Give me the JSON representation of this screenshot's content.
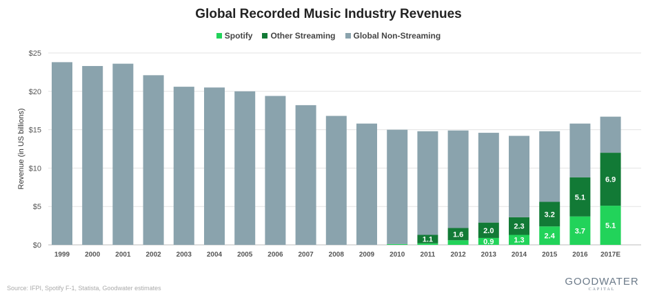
{
  "chart_data": {
    "type": "bar",
    "stacked": true,
    "title": "Global Recorded Music Industry Revenues",
    "ylabel": "Revenue (in US billions)",
    "xlabel": "",
    "ylim": [
      0,
      25
    ],
    "yticks": [
      0,
      5,
      10,
      15,
      20,
      25
    ],
    "ytick_labels": [
      "$0",
      "$5",
      "$10",
      "$15",
      "$20",
      "$25"
    ],
    "grid": true,
    "legend_position": "top",
    "categories": [
      "1999",
      "2000",
      "2001",
      "2002",
      "2003",
      "2004",
      "2005",
      "2006",
      "2007",
      "2008",
      "2009",
      "2010",
      "2011",
      "2012",
      "2013",
      "2014",
      "2015",
      "2016",
      "2017E"
    ],
    "series": [
      {
        "name": "Spotify",
        "color": "#22d35a",
        "values": [
          0,
          0,
          0,
          0,
          0,
          0,
          0,
          0,
          0,
          0,
          0,
          0.1,
          0.2,
          0.6,
          0.9,
          1.3,
          2.4,
          3.7,
          5.1
        ],
        "labels": [
          null,
          null,
          null,
          null,
          null,
          null,
          null,
          null,
          null,
          null,
          null,
          null,
          null,
          null,
          "0.9",
          "1.3",
          "2.4",
          "3.7",
          "5.1"
        ]
      },
      {
        "name": "Other Streaming",
        "color": "#127a36",
        "values": [
          0,
          0,
          0,
          0,
          0,
          0,
          0,
          0,
          0,
          0,
          0,
          0,
          1.1,
          1.6,
          2.0,
          2.3,
          3.2,
          5.1,
          6.9
        ],
        "labels": [
          null,
          null,
          null,
          null,
          null,
          null,
          null,
          null,
          null,
          null,
          null,
          null,
          "1.1",
          "1.6",
          "2.0",
          "2.3",
          "3.2",
          "5.1",
          "6.9"
        ]
      },
      {
        "name": "Global Non-Streaming",
        "color": "#8aa3ad",
        "values": [
          23.8,
          23.3,
          23.6,
          22.1,
          20.6,
          20.5,
          20.0,
          19.4,
          18.2,
          16.8,
          15.8,
          14.9,
          13.5,
          12.7,
          11.7,
          10.6,
          9.2,
          7.0,
          4.7
        ]
      }
    ]
  },
  "footer": {
    "source": "Source: IFPI, Spotify F-1, Statista, Goodwater estimates",
    "logo_main": "GOODWATER",
    "logo_sub": "CAPITAL"
  }
}
